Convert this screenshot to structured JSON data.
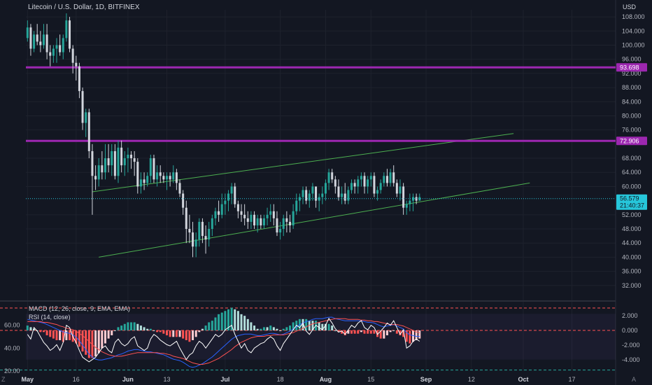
{
  "header": {
    "symbol_title": "Litecoin / U.S. Dollar, 1D, BITFINEX",
    "currency": "USD"
  },
  "indicators": {
    "macd_label": "MACD (12, 26, close, 9, EMA, EMA)",
    "rsi_label": "RSI (14, close)"
  },
  "corners": {
    "left": "Z",
    "right": "A"
  },
  "colors": {
    "background": "#131722",
    "up_candle": "#26a69a",
    "down_candle": "#d1d4dc",
    "level_line": "#9c27b0",
    "channel_line": "#4caf50",
    "last_price_label": "#26c6da",
    "macd_line": "#2962ff",
    "signal_line": "#ff5252",
    "rsi_line": "#ffffff",
    "hist_grow": "#26a69a",
    "hist_fall": "#ff5252"
  },
  "chart_data": {
    "type": "candlestick",
    "title": "Litecoin / U.S. Dollar, 1D, BITFINEX",
    "ylabel": "USD",
    "ylim": [
      28,
      110
    ],
    "y_ticks": [
      108,
      104,
      100,
      96,
      92,
      88,
      84,
      80,
      76,
      68,
      64,
      60,
      52,
      48,
      44,
      40,
      36,
      32
    ],
    "y_tick_labels": [
      "108.000",
      "104.000",
      "100.000",
      "96.000",
      "92.000",
      "88.000",
      "84.000",
      "80.000",
      "76.000",
      "68.000",
      "64.000",
      "60.000",
      "52.000",
      "48.000",
      "44.000",
      "40.000",
      "36.000",
      "32.000"
    ],
    "x_labels": [
      "May",
      "16",
      "Jun",
      "13",
      "Jul",
      "18",
      "Aug",
      "15",
      "Sep",
      "12",
      "Oct",
      "17"
    ],
    "x_label_days": [
      0,
      15,
      31,
      43,
      61,
      78,
      92,
      106,
      123,
      137,
      153,
      168
    ],
    "x_start": "2021-05-01",
    "x_end": "2021-10-31",
    "ohlc": [
      [
        102,
        107,
        101,
        105
      ],
      [
        105,
        106,
        97,
        99
      ],
      [
        99,
        104,
        98,
        103
      ],
      [
        103,
        106,
        100,
        101
      ],
      [
        101,
        104,
        98,
        100
      ],
      [
        100,
        106,
        99,
        103
      ],
      [
        103,
        106,
        96,
        98
      ],
      [
        98,
        100,
        94,
        97
      ],
      [
        97,
        100,
        95,
        99
      ],
      [
        99,
        102,
        95,
        100
      ],
      [
        100,
        103,
        97,
        98
      ],
      [
        98,
        103,
        96,
        102
      ],
      [
        102,
        109,
        101,
        107
      ],
      [
        107,
        108,
        98,
        99
      ],
      [
        99,
        100,
        92,
        95
      ],
      [
        95,
        97,
        90,
        94
      ],
      [
        94,
        95,
        85,
        87
      ],
      [
        87,
        88,
        76,
        78
      ],
      [
        78,
        82,
        74,
        81
      ],
      [
        81,
        82,
        68,
        70
      ],
      [
        70,
        72,
        52,
        63
      ],
      [
        63,
        66,
        59,
        62
      ],
      [
        62,
        68,
        60,
        66
      ],
      [
        66,
        70,
        62,
        64
      ],
      [
        64,
        72,
        62,
        68
      ],
      [
        68,
        72,
        64,
        66
      ],
      [
        66,
        72,
        63,
        70
      ],
      [
        70,
        72,
        62,
        63
      ],
      [
        63,
        73,
        61,
        71
      ],
      [
        71,
        73,
        64,
        66
      ],
      [
        66,
        70,
        63,
        68
      ],
      [
        68,
        71,
        64,
        69
      ],
      [
        69,
        70,
        65,
        68
      ],
      [
        68,
        70,
        63,
        67
      ],
      [
        67,
        68,
        58,
        60
      ],
      [
        60,
        64,
        58,
        62
      ],
      [
        62,
        64,
        59,
        61
      ],
      [
        61,
        64,
        60,
        63
      ],
      [
        63,
        69,
        61,
        68
      ],
      [
        68,
        69,
        61,
        62
      ],
      [
        62,
        66,
        60,
        64
      ],
      [
        64,
        66,
        61,
        63
      ],
      [
        63,
        64,
        61,
        62
      ],
      [
        62,
        64,
        59,
        63
      ],
      [
        63,
        64,
        60,
        62
      ],
      [
        62,
        66,
        61,
        64
      ],
      [
        64,
        65,
        59,
        61
      ],
      [
        61,
        62,
        57,
        58
      ],
      [
        58,
        59,
        52,
        54
      ],
      [
        54,
        56,
        44,
        48
      ],
      [
        48,
        52,
        44,
        47
      ],
      [
        47,
        50,
        40,
        43
      ],
      [
        43,
        47,
        40,
        45
      ],
      [
        45,
        51,
        43,
        50
      ],
      [
        50,
        51,
        44,
        46
      ],
      [
        46,
        49,
        41,
        45
      ],
      [
        45,
        50,
        43,
        48
      ],
      [
        48,
        52,
        46,
        51
      ],
      [
        51,
        54,
        49,
        53
      ],
      [
        53,
        56,
        50,
        52
      ],
      [
        52,
        58,
        51,
        55
      ],
      [
        55,
        58,
        52,
        56
      ],
      [
        56,
        59,
        53,
        58
      ],
      [
        58,
        61,
        55,
        60
      ],
      [
        60,
        61,
        54,
        55
      ],
      [
        55,
        56,
        51,
        53
      ],
      [
        53,
        55,
        50,
        52
      ],
      [
        52,
        55,
        49,
        51
      ],
      [
        51,
        53,
        48,
        50
      ],
      [
        50,
        53,
        48,
        52
      ],
      [
        52,
        53,
        48,
        49
      ],
      [
        49,
        52,
        47,
        51
      ],
      [
        51,
        52,
        48,
        49
      ],
      [
        49,
        52,
        48,
        51
      ],
      [
        51,
        54,
        49,
        52
      ],
      [
        52,
        55,
        50,
        53
      ],
      [
        53,
        55,
        49,
        51
      ],
      [
        51,
        53,
        46,
        47
      ],
      [
        47,
        50,
        45,
        48
      ],
      [
        48,
        52,
        46,
        51
      ],
      [
        51,
        53,
        47,
        50
      ],
      [
        50,
        52,
        47,
        49
      ],
      [
        49,
        55,
        48,
        53
      ],
      [
        53,
        58,
        52,
        56
      ],
      [
        56,
        58,
        53,
        57
      ],
      [
        57,
        60,
        55,
        59
      ],
      [
        59,
        60,
        55,
        56
      ],
      [
        56,
        59,
        54,
        58
      ],
      [
        58,
        61,
        56,
        60
      ],
      [
        60,
        60,
        54,
        56
      ],
      [
        56,
        58,
        53,
        57
      ],
      [
        57,
        60,
        55,
        58
      ],
      [
        58,
        62,
        56,
        61
      ],
      [
        61,
        65,
        59,
        64
      ],
      [
        64,
        65,
        61,
        62
      ],
      [
        62,
        63,
        58,
        60
      ],
      [
        60,
        62,
        56,
        57
      ],
      [
        57,
        60,
        55,
        58
      ],
      [
        58,
        61,
        55,
        56
      ],
      [
        56,
        60,
        55,
        59
      ],
      [
        59,
        62,
        58,
        61
      ],
      [
        61,
        62,
        58,
        60
      ],
      [
        60,
        63,
        58,
        62
      ],
      [
        62,
        64,
        60,
        63
      ],
      [
        63,
        64,
        58,
        60
      ],
      [
        60,
        63,
        58,
        62
      ],
      [
        62,
        64,
        60,
        63
      ],
      [
        63,
        64,
        57,
        58
      ],
      [
        58,
        60,
        56,
        59
      ],
      [
        59,
        62,
        58,
        61
      ],
      [
        61,
        64,
        60,
        63
      ],
      [
        63,
        65,
        60,
        61
      ],
      [
        61,
        65,
        60,
        64
      ],
      [
        64,
        66,
        60,
        61
      ],
      [
        61,
        62,
        57,
        58
      ],
      [
        58,
        62,
        56,
        60
      ],
      [
        60,
        61,
        52,
        54
      ],
      [
        54,
        56,
        52,
        55
      ],
      [
        55,
        58,
        53,
        56
      ],
      [
        56,
        58,
        53,
        57
      ],
      [
        57,
        58,
        55,
        56
      ],
      [
        56,
        58,
        56,
        57
      ]
    ],
    "horizontal_levels": [
      93.698,
      72.906
    ],
    "level_labels": [
      "93.698",
      "72.906"
    ],
    "last_price": "56.579",
    "countdown": "21:40:37",
    "channel_lines": [
      {
        "start": [
          "2021-05-21",
          58.5
        ],
        "end": [
          "2021-09-28",
          75.0
        ]
      },
      {
        "start": [
          "2021-05-23",
          40.0
        ],
        "end": [
          "2021-10-03",
          61.0
        ]
      }
    ],
    "rsi": {
      "ylim": [
        20,
        80
      ],
      "ticks": [
        60,
        40,
        20
      ],
      "tick_labels": [
        "60.00",
        "40.00",
        "20.00"
      ],
      "values": [
        52,
        48,
        58,
        55,
        50,
        45,
        42,
        38,
        40,
        43,
        38,
        45,
        60,
        58,
        50,
        45,
        38,
        32,
        30,
        28,
        30,
        32,
        36,
        40,
        42,
        38,
        36,
        45,
        48,
        44,
        42,
        44,
        48,
        50,
        42,
        40,
        38,
        40,
        48,
        52,
        50,
        47,
        45,
        43,
        42,
        44,
        46,
        40,
        35,
        30,
        34,
        36,
        42,
        46,
        44,
        40,
        44,
        48,
        52,
        50,
        52,
        56,
        58,
        60,
        52,
        46,
        40,
        44,
        38,
        36,
        40,
        42,
        44,
        45,
        48,
        50,
        48,
        42,
        38,
        44,
        48,
        52,
        56,
        60,
        58,
        62,
        55,
        52,
        56,
        60,
        58,
        56,
        60,
        66,
        62,
        57,
        54,
        55,
        52,
        56,
        60,
        58,
        62,
        64,
        58,
        56,
        60,
        58,
        52,
        55,
        58,
        62,
        60,
        64,
        58,
        52,
        56,
        40,
        42,
        46,
        48,
        46
      ],
      "band_upper": 70,
      "band_lower": 30
    },
    "macd": {
      "ylim": [
        -5.5,
        3.8
      ],
      "ticks": [
        2,
        0,
        -2,
        -4
      ],
      "tick_labels": [
        "2.000",
        "0.000",
        "-2.000",
        "-4.000"
      ],
      "macd_line": [
        1.5,
        1.4,
        1.3,
        1.2,
        1.1,
        1.0,
        0.8,
        0.6,
        0.4,
        0.2,
        0.0,
        -0.2,
        -0.3,
        -0.4,
        -0.6,
        -0.9,
        -1.4,
        -2.0,
        -2.6,
        -3.2,
        -3.6,
        -3.9,
        -4.0,
        -4.0,
        -3.9,
        -3.8,
        -3.7,
        -3.5,
        -3.3,
        -3.2,
        -3.0,
        -2.8,
        -2.7,
        -2.6,
        -2.6,
        -2.7,
        -2.8,
        -2.9,
        -2.9,
        -3.0,
        -3.1,
        -3.2,
        -3.3,
        -3.5,
        -3.7,
        -3.9,
        -4.0,
        -4.1,
        -4.3,
        -4.6,
        -4.9,
        -5.0,
        -4.9,
        -4.7,
        -4.5,
        -4.2,
        -3.9,
        -3.6,
        -3.2,
        -2.8,
        -2.4,
        -2.0,
        -1.6,
        -1.2,
        -0.9,
        -0.7,
        -0.6,
        -0.5,
        -0.5,
        -0.5,
        -0.6,
        -0.7,
        -0.7,
        -0.6,
        -0.5,
        -0.4,
        -0.4,
        -0.5,
        -0.6,
        -0.5,
        -0.3,
        -0.1,
        0.2,
        0.5,
        0.8,
        1.0,
        1.2,
        1.3,
        1.5,
        1.6,
        1.6,
        1.6,
        1.7,
        1.8,
        1.8,
        1.6,
        1.5,
        1.4,
        1.3,
        1.3,
        1.3,
        1.3,
        1.3,
        1.3,
        1.2,
        1.1,
        1.1,
        1.0,
        0.8,
        0.6,
        0.5,
        0.6,
        0.7,
        0.8,
        0.6,
        0.4,
        0.2,
        -0.3,
        -0.6,
        -0.7,
        -0.8,
        -0.8
      ],
      "signal_line": [
        1.2,
        1.2,
        1.2,
        1.2,
        1.2,
        1.1,
        1.1,
        1.0,
        0.9,
        0.8,
        0.6,
        0.5,
        0.3,
        0.2,
        0.1,
        -0.1,
        -0.4,
        -0.7,
        -1.1,
        -1.5,
        -1.9,
        -2.3,
        -2.6,
        -2.9,
        -3.1,
        -3.3,
        -3.4,
        -3.5,
        -3.5,
        -3.5,
        -3.4,
        -3.3,
        -3.2,
        -3.1,
        -3.0,
        -3.0,
        -3.0,
        -3.0,
        -3.0,
        -3.0,
        -3.0,
        -3.1,
        -3.1,
        -3.2,
        -3.3,
        -3.5,
        -3.6,
        -3.7,
        -3.8,
        -4.0,
        -4.2,
        -4.4,
        -4.5,
        -4.6,
        -4.6,
        -4.5,
        -4.4,
        -4.2,
        -4.0,
        -3.8,
        -3.5,
        -3.2,
        -2.9,
        -2.6,
        -2.2,
        -1.9,
        -1.6,
        -1.4,
        -1.2,
        -1.0,
        -0.9,
        -0.8,
        -0.8,
        -0.8,
        -0.7,
        -0.7,
        -0.6,
        -0.6,
        -0.6,
        -0.6,
        -0.5,
        -0.4,
        -0.3,
        -0.1,
        0.1,
        0.3,
        0.5,
        0.7,
        0.9,
        1.0,
        1.1,
        1.2,
        1.3,
        1.4,
        1.5,
        1.6,
        1.6,
        1.6,
        1.6,
        1.5,
        1.5,
        1.5,
        1.5,
        1.4,
        1.4,
        1.3,
        1.3,
        1.2,
        1.2,
        1.1,
        1.0,
        0.9,
        0.8,
        0.8,
        0.8,
        0.7,
        0.6,
        0.4,
        0.2,
        0.0,
        -0.2,
        -0.3
      ]
    }
  }
}
